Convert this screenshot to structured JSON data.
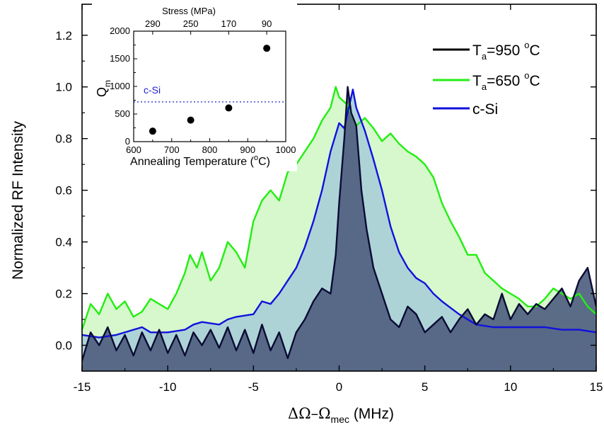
{
  "chart_data": [
    {
      "type": "area",
      "xlabel_parts": {
        "delta": "ΔΩ–Ω",
        "sub": "mec",
        "unit": " (MHz)"
      },
      "ylabel": "Normalized RF Intensity",
      "xlim": [
        -15,
        15
      ],
      "ylim": [
        -0.1,
        1.32
      ],
      "xticks": [
        "-15",
        "-10",
        "-5",
        "0",
        "5",
        "10",
        "15"
      ],
      "yticks": [
        "0.0",
        "0.2",
        "0.4",
        "0.6",
        "0.8",
        "1.0",
        "1.2"
      ],
      "legend_position": "top-right",
      "series": [
        {
          "id": "ta650",
          "legend": {
            "pre": "T",
            "sub": "a",
            "mid": "=650 ",
            "sup": "o",
            "post": "C"
          },
          "line_color": "#22ee11",
          "fill_color": "#d2f7c8",
          "points": [
            [
              -15,
              0.06
            ],
            [
              -14.5,
              0.16
            ],
            [
              -14,
              0.12
            ],
            [
              -13.5,
              0.2
            ],
            [
              -13,
              0.14
            ],
            [
              -12.5,
              0.17
            ],
            [
              -12,
              0.11
            ],
            [
              -11.5,
              0.13
            ],
            [
              -11,
              0.18
            ],
            [
              -10.5,
              0.16
            ],
            [
              -10,
              0.14
            ],
            [
              -9.5,
              0.2
            ],
            [
              -9,
              0.28
            ],
            [
              -8.7,
              0.35
            ],
            [
              -8.3,
              0.3
            ],
            [
              -8,
              0.36
            ],
            [
              -7.5,
              0.25
            ],
            [
              -7,
              0.3
            ],
            [
              -6.5,
              0.4
            ],
            [
              -6,
              0.36
            ],
            [
              -5.5,
              0.3
            ],
            [
              -5,
              0.48
            ],
            [
              -4.5,
              0.56
            ],
            [
              -4,
              0.6
            ],
            [
              -3.5,
              0.56
            ],
            [
              -3,
              0.67
            ],
            [
              -2.5,
              0.7
            ],
            [
              -2,
              0.75
            ],
            [
              -1.5,
              0.8
            ],
            [
              -1,
              0.87
            ],
            [
              -0.5,
              0.92
            ],
            [
              -0.2,
              1.0
            ],
            [
              0,
              0.96
            ],
            [
              0.5,
              0.93
            ],
            [
              1,
              0.85
            ],
            [
              1.5,
              0.88
            ],
            [
              2,
              0.84
            ],
            [
              2.5,
              0.79
            ],
            [
              3,
              0.82
            ],
            [
              3.5,
              0.78
            ],
            [
              4,
              0.75
            ],
            [
              4.5,
              0.73
            ],
            [
              5,
              0.7
            ],
            [
              5.5,
              0.65
            ],
            [
              6,
              0.55
            ],
            [
              6.5,
              0.48
            ],
            [
              7,
              0.42
            ],
            [
              7.5,
              0.35
            ],
            [
              8,
              0.35
            ],
            [
              8.5,
              0.28
            ],
            [
              9,
              0.25
            ],
            [
              9.5,
              0.22
            ],
            [
              10,
              0.2
            ],
            [
              10.5,
              0.18
            ],
            [
              11,
              0.15
            ],
            [
              11.5,
              0.15
            ],
            [
              12,
              0.18
            ],
            [
              12.5,
              0.22
            ],
            [
              13,
              0.2
            ],
            [
              13.5,
              0.18
            ],
            [
              14,
              0.2
            ],
            [
              14.5,
              0.15
            ],
            [
              15,
              0.12
            ]
          ]
        },
        {
          "id": "csi",
          "legend": {
            "pre": "c-Si",
            "sub": "",
            "mid": "",
            "sup": "",
            "post": ""
          },
          "line_color": "#1111dd",
          "fill_color": "#a9cfd8",
          "points": [
            [
              -15,
              0.04
            ],
            [
              -14,
              0.03
            ],
            [
              -13,
              0.04
            ],
            [
              -12,
              0.06
            ],
            [
              -11.5,
              0.07
            ],
            [
              -11,
              0.05
            ],
            [
              -10,
              0.05
            ],
            [
              -9,
              0.06
            ],
            [
              -8.5,
              0.08
            ],
            [
              -8,
              0.09
            ],
            [
              -7,
              0.08
            ],
            [
              -6.5,
              0.1
            ],
            [
              -6,
              0.11
            ],
            [
              -5,
              0.12
            ],
            [
              -4.5,
              0.17
            ],
            [
              -4,
              0.16
            ],
            [
              -3.5,
              0.2
            ],
            [
              -3,
              0.25
            ],
            [
              -2.5,
              0.3
            ],
            [
              -2,
              0.38
            ],
            [
              -1.5,
              0.48
            ],
            [
              -1,
              0.6
            ],
            [
              -0.5,
              0.75
            ],
            [
              0,
              0.86
            ],
            [
              0.3,
              0.84
            ],
            [
              0.8,
              0.99
            ],
            [
              1,
              0.92
            ],
            [
              1.5,
              0.83
            ],
            [
              2,
              0.72
            ],
            [
              2.5,
              0.6
            ],
            [
              3,
              0.46
            ],
            [
              3.5,
              0.36
            ],
            [
              4,
              0.3
            ],
            [
              4.5,
              0.26
            ],
            [
              5,
              0.24
            ],
            [
              5.5,
              0.2
            ],
            [
              6,
              0.17
            ],
            [
              7,
              0.12
            ],
            [
              8,
              0.08
            ],
            [
              9,
              0.07
            ],
            [
              10,
              0.07
            ],
            [
              11,
              0.07
            ],
            [
              12,
              0.07
            ],
            [
              13,
              0.06
            ],
            [
              14,
              0.06
            ],
            [
              15,
              0.05
            ]
          ]
        },
        {
          "id": "ta950",
          "legend": {
            "pre": "T",
            "sub": "a",
            "mid": "=950 ",
            "sup": "o",
            "post": "C"
          },
          "line_color": "#0b0b33",
          "fill_color": "#4f5f80",
          "points": [
            [
              -15,
              -0.06
            ],
            [
              -14.5,
              0.05
            ],
            [
              -14,
              0.0
            ],
            [
              -13.5,
              0.07
            ],
            [
              -13,
              -0.02
            ],
            [
              -12.5,
              0.04
            ],
            [
              -12,
              -0.04
            ],
            [
              -11.5,
              0.05
            ],
            [
              -11,
              -0.02
            ],
            [
              -10.5,
              0.06
            ],
            [
              -10,
              -0.03
            ],
            [
              -9.5,
              0.04
            ],
            [
              -9,
              -0.04
            ],
            [
              -8.5,
              0.05
            ],
            [
              -8,
              0.0
            ],
            [
              -7.5,
              0.06
            ],
            [
              -7,
              -0.01
            ],
            [
              -6.5,
              0.07
            ],
            [
              -6,
              -0.02
            ],
            [
              -5.5,
              0.06
            ],
            [
              -5,
              -0.03
            ],
            [
              -4.5,
              0.08
            ],
            [
              -4,
              -0.02
            ],
            [
              -3.5,
              0.05
            ],
            [
              -3,
              -0.05
            ],
            [
              -2.5,
              0.05
            ],
            [
              -2,
              0.1
            ],
            [
              -1.5,
              0.17
            ],
            [
              -1,
              0.22
            ],
            [
              -0.5,
              0.2
            ],
            [
              -0.2,
              0.35
            ],
            [
              0,
              0.55
            ],
            [
              0.3,
              0.8
            ],
            [
              0.5,
              1.0
            ],
            [
              0.7,
              0.9
            ],
            [
              1,
              0.85
            ],
            [
              1.3,
              0.6
            ],
            [
              1.6,
              0.45
            ],
            [
              2,
              0.3
            ],
            [
              2.5,
              0.2
            ],
            [
              3,
              0.1
            ],
            [
              3.5,
              0.07
            ],
            [
              4,
              0.15
            ],
            [
              4.5,
              0.12
            ],
            [
              5,
              0.05
            ],
            [
              5.5,
              0.08
            ],
            [
              6,
              0.11
            ],
            [
              6.5,
              0.05
            ],
            [
              7,
              0.1
            ],
            [
              7.5,
              0.14
            ],
            [
              8,
              0.08
            ],
            [
              8.5,
              0.12
            ],
            [
              9,
              0.1
            ],
            [
              9.5,
              0.2
            ],
            [
              10,
              0.1
            ],
            [
              10.5,
              0.16
            ],
            [
              11,
              0.12
            ],
            [
              11.5,
              0.16
            ],
            [
              12,
              0.14
            ],
            [
              12.5,
              0.18
            ],
            [
              13,
              0.22
            ],
            [
              13.5,
              0.15
            ],
            [
              14,
              0.25
            ],
            [
              14.5,
              0.3
            ],
            [
              15,
              0.15
            ]
          ]
        }
      ]
    },
    {
      "type": "scatter",
      "xlabel_parts": {
        "text": "Annealing Temperature (",
        "sup": "o",
        "post": "C)"
      },
      "ylabel": {
        "text": "Q",
        "sub": "m"
      },
      "top_axis_label": "Stress (MPa)",
      "xlim": [
        600,
        1000
      ],
      "ylim": [
        0,
        2000
      ],
      "xticks": [
        "600",
        "700",
        "800",
        "900",
        "1000"
      ],
      "yticks": [
        "0",
        "500",
        "1000",
        "1500",
        "2000"
      ],
      "top_ticks": [
        {
          "x": 650,
          "label": "290"
        },
        {
          "x": 750,
          "label": "250"
        },
        {
          "x": 850,
          "label": "170"
        },
        {
          "x": 950,
          "label": "90"
        }
      ],
      "reference_line": {
        "label": "c-Si",
        "y": 720,
        "color": "#2222cc"
      },
      "points": [
        [
          650,
          190
        ],
        [
          750,
          390
        ],
        [
          850,
          610
        ],
        [
          950,
          1690
        ]
      ]
    }
  ]
}
